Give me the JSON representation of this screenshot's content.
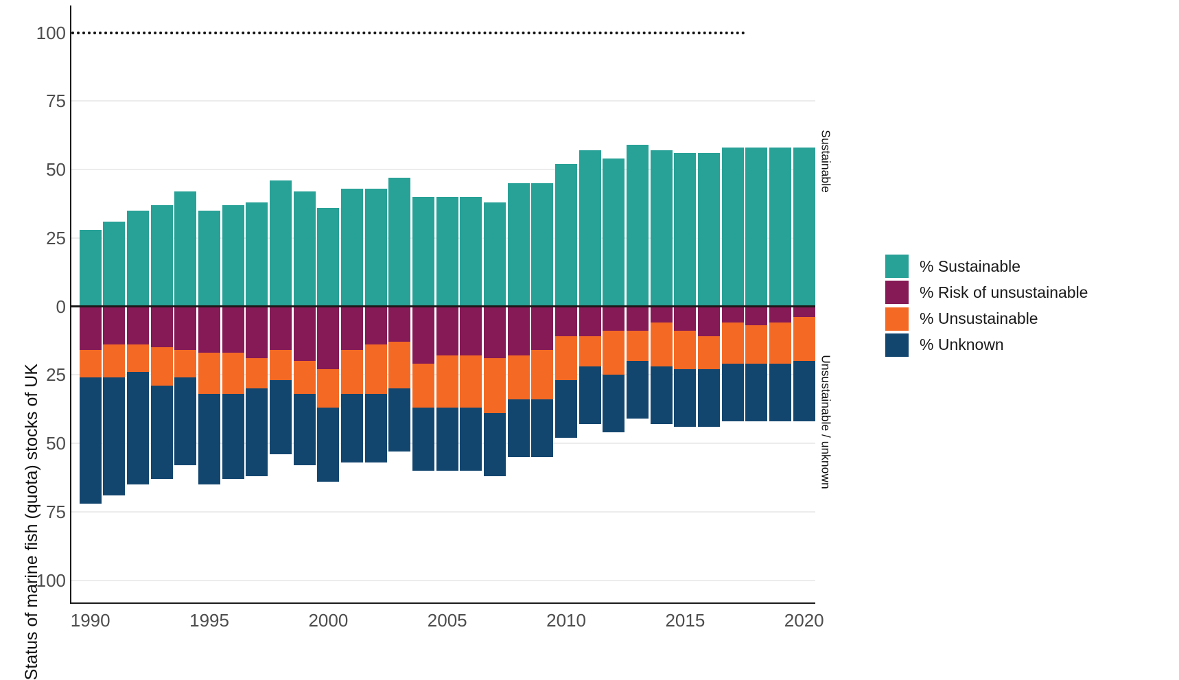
{
  "chart_data": {
    "type": "bar",
    "variant": "diverging-stacked-percent",
    "title": "",
    "ylabel": "Status of marine fish (quota) stocks of UK",
    "xlabel": "",
    "x_tick_labels": [
      "1990",
      "1995",
      "2000",
      "2005",
      "2010",
      "2015",
      "2020"
    ],
    "y_tick_labels_top_to_bottom": [
      "100",
      "75",
      "50",
      "25",
      "0",
      "25",
      "50",
      "75",
      "100"
    ],
    "y_axis_unit": "percent",
    "ylim_up": [
      0,
      100
    ],
    "ylim_down": [
      0,
      100
    ],
    "reference_line": {
      "value": 100,
      "style": "dotted",
      "color": "#111111"
    },
    "grid": "on",
    "legend_position": "right-outside",
    "right_annotations": [
      {
        "label": "Sustainable",
        "region": "above-zero"
      },
      {
        "label": "Unsustainable / unknown",
        "region": "below-zero"
      }
    ],
    "categories": [
      1990,
      1991,
      1992,
      1993,
      1994,
      1995,
      1996,
      1997,
      1998,
      1999,
      2000,
      2001,
      2002,
      2003,
      2004,
      2005,
      2006,
      2007,
      2008,
      2009,
      2010,
      2011,
      2012,
      2013,
      2014,
      2015,
      2016,
      2017,
      2018,
      2019,
      2020
    ],
    "series": [
      {
        "name": "% Sustainable",
        "direction": "up",
        "color": "#28A197",
        "values": [
          28,
          31,
          35,
          37,
          42,
          35,
          37,
          38,
          46,
          42,
          36,
          43,
          43,
          47,
          40,
          40,
          40,
          38,
          45,
          45,
          52,
          57,
          54,
          59,
          57,
          56,
          56,
          58,
          58,
          58,
          58
        ]
      },
      {
        "name": "% Risk of unsustainable",
        "direction": "down",
        "color": "#851A56",
        "values": [
          16,
          14,
          14,
          15,
          16,
          17,
          17,
          19,
          16,
          20,
          23,
          16,
          14,
          13,
          21,
          18,
          18,
          19,
          18,
          16,
          11,
          11,
          9,
          9,
          6,
          9,
          11,
          6,
          7,
          6,
          4
        ]
      },
      {
        "name": "% Unsustainable",
        "direction": "down",
        "color": "#F46A25",
        "values": [
          10,
          12,
          10,
          14,
          10,
          15,
          15,
          11,
          11,
          12,
          14,
          16,
          18,
          17,
          16,
          19,
          19,
          20,
          16,
          18,
          16,
          11,
          16,
          11,
          16,
          14,
          12,
          15,
          14,
          15,
          16
        ]
      },
      {
        "name": "% Unknown",
        "direction": "down",
        "color": "#13466F",
        "values": [
          46,
          43,
          41,
          34,
          32,
          33,
          31,
          32,
          27,
          26,
          27,
          25,
          25,
          23,
          23,
          23,
          23,
          23,
          21,
          21,
          21,
          21,
          21,
          21,
          21,
          21,
          21,
          21,
          21,
          21,
          22
        ]
      }
    ]
  },
  "legend": {
    "items": [
      {
        "label": "% Sustainable",
        "color": "#28A197"
      },
      {
        "label": "% Risk of unsustainable",
        "color": "#851A56"
      },
      {
        "label": "% Unsustainable",
        "color": "#F46A25"
      },
      {
        "label": "% Unknown",
        "color": "#13466F"
      }
    ]
  },
  "annotations": {
    "sustainable_side": "Sustainable",
    "unsustainable_side": "Unsustainable / unknown"
  }
}
